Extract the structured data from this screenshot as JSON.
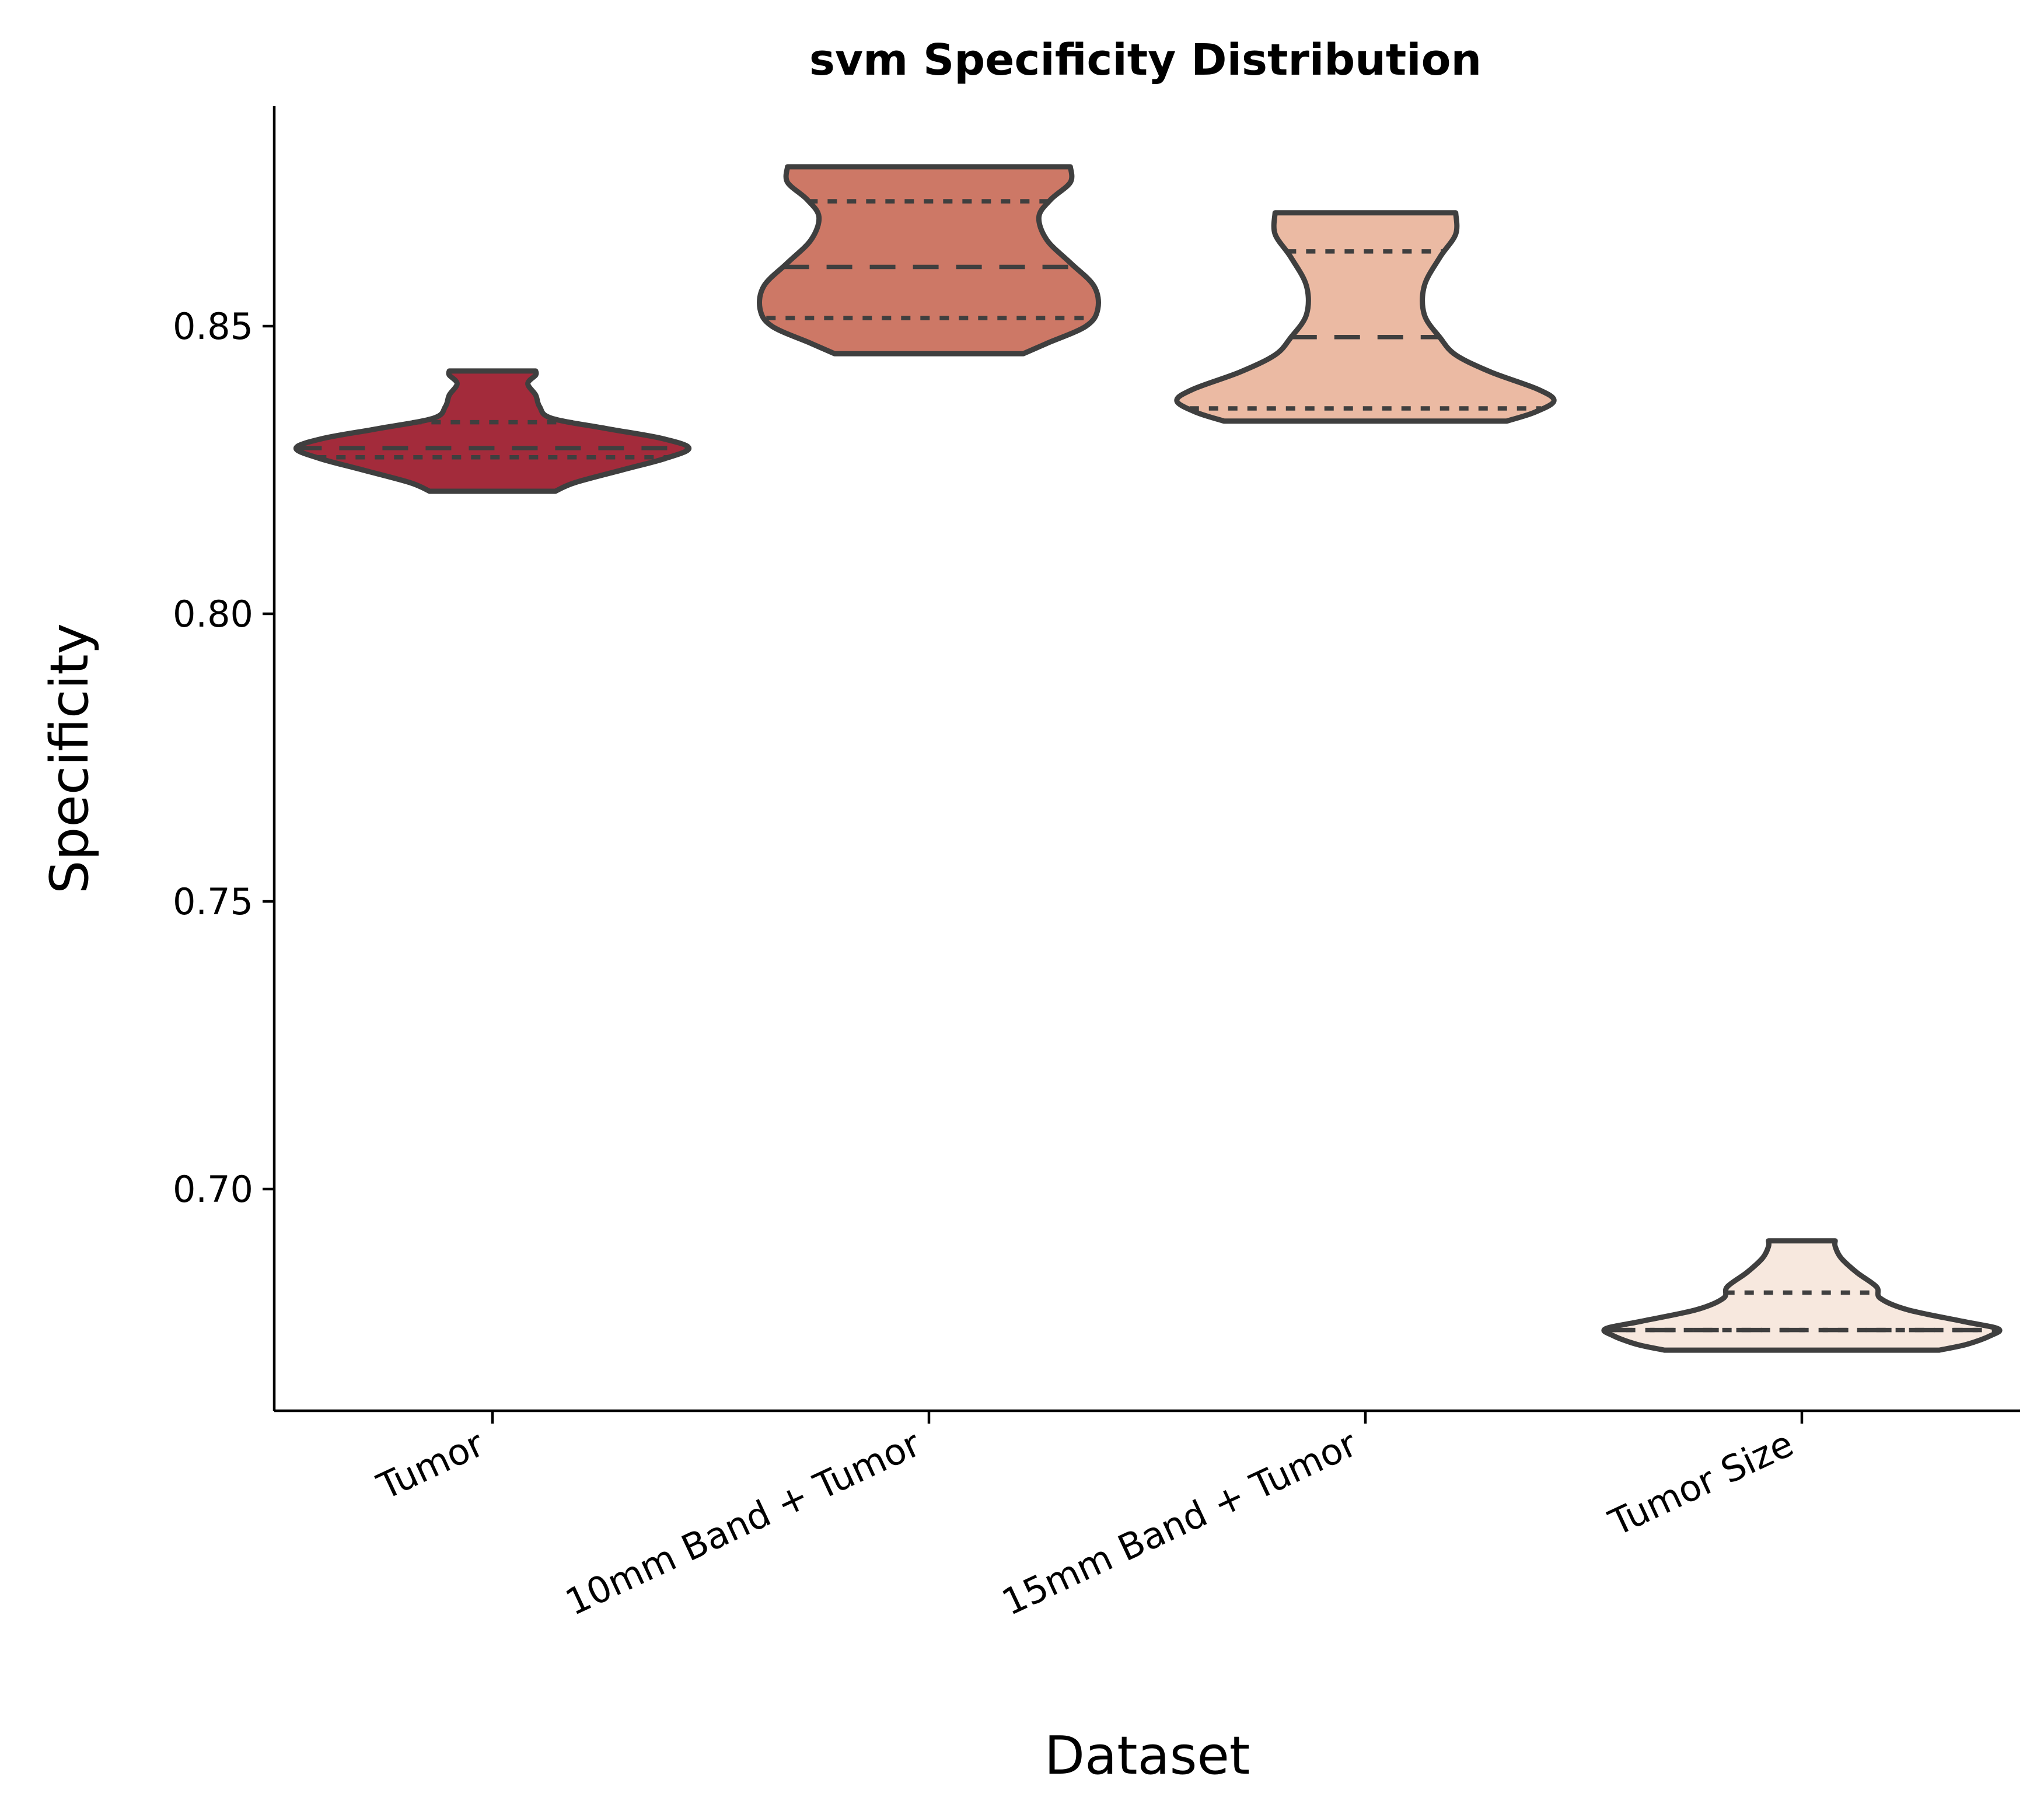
{
  "chart_data": {
    "type": "violin",
    "title": "svm Specificity Distribution",
    "xlabel": "Dataset",
    "ylabel": "Specificity",
    "ylim": [
      0.662,
      0.889
    ],
    "yticks": [
      "0.70",
      "0.75",
      "0.80",
      "0.85"
    ],
    "ytick_values": [
      0.7,
      0.75,
      0.8,
      0.85
    ],
    "grid": false,
    "legend": "none",
    "categories": [
      "Tumor",
      "10mm Band + Tumor",
      "15mm Band + Tumor",
      "Tumor Size"
    ],
    "violins": [
      {
        "category": "Tumor",
        "color": "#a32b3b",
        "min": 0.8213,
        "max": 0.8422,
        "q1": 0.8272,
        "median": 0.8288,
        "q3": 0.8333,
        "profile": [
          [
            0.8213,
            0.32
          ],
          [
            0.8228,
            0.42
          ],
          [
            0.825,
            0.66
          ],
          [
            0.827,
            0.88
          ],
          [
            0.8288,
            1.0
          ],
          [
            0.8305,
            0.86
          ],
          [
            0.8322,
            0.58
          ],
          [
            0.834,
            0.3
          ],
          [
            0.836,
            0.24
          ],
          [
            0.838,
            0.22
          ],
          [
            0.84,
            0.18
          ],
          [
            0.8415,
            0.22
          ],
          [
            0.8422,
            0.22
          ]
        ]
      },
      {
        "category": "10mm Band + Tumor",
        "color": "#cd7866",
        "min": 0.8452,
        "max": 0.8777,
        "q1": 0.8514,
        "median": 0.8603,
        "q3": 0.8717,
        "profile": [
          [
            0.8452,
            0.48
          ],
          [
            0.847,
            0.6
          ],
          [
            0.85,
            0.8
          ],
          [
            0.853,
            0.86
          ],
          [
            0.857,
            0.84
          ],
          [
            0.861,
            0.72
          ],
          [
            0.865,
            0.6
          ],
          [
            0.869,
            0.56
          ],
          [
            0.872,
            0.62
          ],
          [
            0.875,
            0.72
          ],
          [
            0.8777,
            0.72
          ]
        ]
      },
      {
        "category": "15mm Band + Tumor",
        "color": "#ebbaa3",
        "min": 0.8335,
        "max": 0.8697,
        "q1": 0.8357,
        "median": 0.8481,
        "q3": 0.863,
        "profile": [
          [
            0.8335,
            0.72
          ],
          [
            0.835,
            0.86
          ],
          [
            0.837,
            0.96
          ],
          [
            0.839,
            0.88
          ],
          [
            0.842,
            0.64
          ],
          [
            0.845,
            0.46
          ],
          [
            0.848,
            0.38
          ],
          [
            0.852,
            0.3
          ],
          [
            0.857,
            0.3
          ],
          [
            0.862,
            0.38
          ],
          [
            0.866,
            0.46
          ],
          [
            0.8697,
            0.46
          ]
        ]
      },
      {
        "category": "Tumor Size",
        "color": "#f7e8de",
        "min": 0.672,
        "max": 0.691,
        "q1": 0.6755,
        "median": 0.6755,
        "q3": 0.682,
        "profile": [
          [
            0.672,
            0.7
          ],
          [
            0.673,
            0.84
          ],
          [
            0.6745,
            0.96
          ],
          [
            0.6757,
            1.0
          ],
          [
            0.677,
            0.82
          ],
          [
            0.679,
            0.54
          ],
          [
            0.681,
            0.4
          ],
          [
            0.683,
            0.38
          ],
          [
            0.6855,
            0.28
          ],
          [
            0.688,
            0.2
          ],
          [
            0.69,
            0.17
          ],
          [
            0.691,
            0.17
          ]
        ]
      }
    ]
  }
}
